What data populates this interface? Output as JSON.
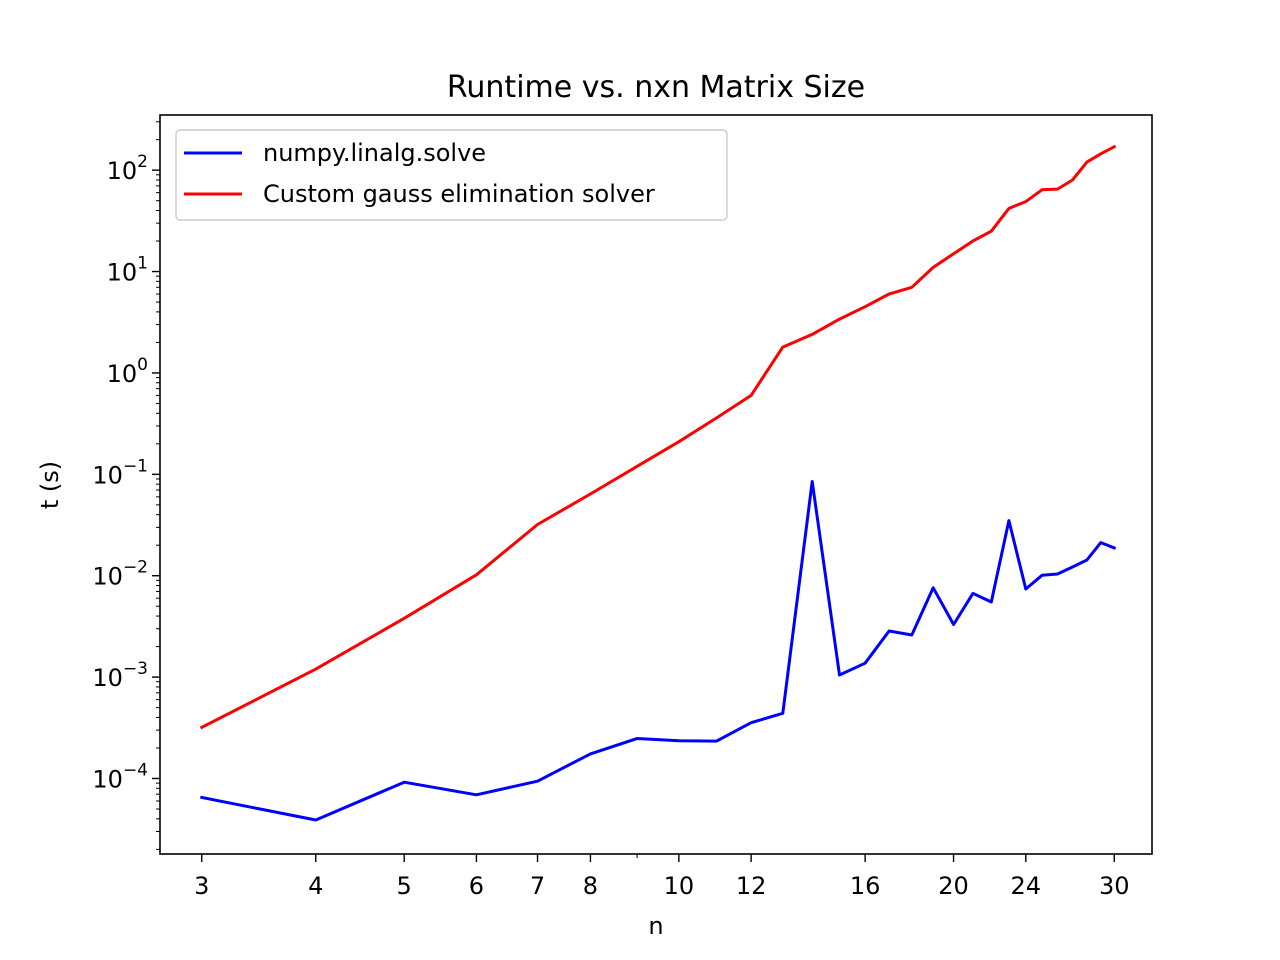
{
  "chart_data": {
    "type": "line",
    "title": "Runtime vs. nxn Matrix Size",
    "xlabel": "n",
    "ylabel": "t (s)",
    "xscale": "log",
    "yscale": "log",
    "xlim": [
      2.7,
      33
    ],
    "ylim": [
      1.8e-05,
      350
    ],
    "x_ticks": [
      3,
      4,
      5,
      6,
      7,
      8,
      10,
      12,
      16,
      20,
      24,
      30
    ],
    "x_tick_labels": [
      "3",
      "4",
      "5",
      "6",
      "7",
      "8",
      "10",
      "12",
      "16",
      "20",
      "24",
      "30"
    ],
    "x_minor_ticks": [
      9
    ],
    "y_ticks": [
      {
        "value": 0.0001,
        "base": "10",
        "exp": "−4"
      },
      {
        "value": 0.001,
        "base": "10",
        "exp": "−3"
      },
      {
        "value": 0.01,
        "base": "10",
        "exp": "−2"
      },
      {
        "value": 0.1,
        "base": "10",
        "exp": "−1"
      },
      {
        "value": 1,
        "base": "10",
        "exp": "0"
      },
      {
        "value": 10,
        "base": "10",
        "exp": "1"
      },
      {
        "value": 100,
        "base": "10",
        "exp": "2"
      }
    ],
    "legend_position": "upper-left",
    "series": [
      {
        "name": "numpy.linalg.solve",
        "color": "#0000ff",
        "x": [
          3,
          4,
          5,
          6,
          7,
          8,
          9,
          10,
          11,
          12,
          13,
          14,
          15,
          16,
          17,
          18,
          19,
          20,
          21,
          22,
          23,
          24,
          25,
          26,
          27,
          28,
          29,
          30
        ],
        "y": [
          6.5e-05,
          3.9e-05,
          9.2e-05,
          6.9e-05,
          9.4e-05,
          0.000175,
          0.000248,
          0.000236,
          0.000234,
          0.000355,
          0.00044,
          0.085,
          0.00105,
          0.00137,
          0.00285,
          0.0026,
          0.0076,
          0.0033,
          0.0067,
          0.0055,
          0.035,
          0.0074,
          0.0101,
          0.0104,
          0.0122,
          0.0143,
          0.0212,
          0.0188
        ]
      },
      {
        "name": "Custom gauss elimination solver",
        "color": "#ff0000",
        "x": [
          3,
          4,
          5,
          6,
          7,
          8,
          9,
          10,
          11,
          12,
          13,
          14,
          15,
          16,
          17,
          18,
          19,
          20,
          21,
          22,
          23,
          24,
          25,
          26,
          27,
          28,
          29,
          30
        ],
        "y": [
          0.00032,
          0.0012,
          0.0038,
          0.0102,
          0.032,
          0.064,
          0.12,
          0.21,
          0.36,
          0.6,
          1.8,
          2.4,
          3.4,
          4.5,
          6.0,
          7.0,
          11.0,
          15.0,
          20.0,
          25.0,
          42.0,
          49.0,
          64.0,
          65.0,
          80.0,
          120.0,
          145.0,
          170.0
        ]
      }
    ]
  }
}
